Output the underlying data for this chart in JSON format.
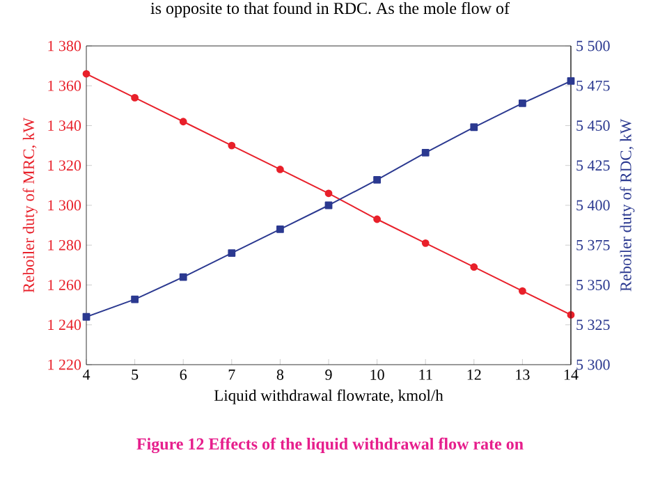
{
  "chart_data": {
    "type": "line",
    "xlabel": "Liquid withdrawal flowrate, kmol/h",
    "ylabel": "Reboiler duty of MRC, kW",
    "y2label": "Reboiler duty of RDC, kW",
    "annotations": [
      "is opposite to that found in RDC. As the mole flow of",
      "Figure 12    Effects of the liquid withdrawal flow rate on"
    ],
    "x": [
      4,
      5,
      6,
      7,
      8,
      9,
      10,
      11,
      12,
      13,
      14
    ],
    "series": [
      {
        "color": "#e8202a",
        "marker": "circle",
        "values": [
          1366,
          1354,
          1342,
          1330,
          1318,
          1306,
          1293,
          1281,
          1269,
          1257,
          1245
        ]
      },
      {
        "color": "#2b3990",
        "marker": "square",
        "axis": "y2",
        "values": [
          5330,
          5341,
          5355,
          5370,
          5385,
          5400,
          5416,
          5433,
          5449,
          5464,
          5478
        ]
      }
    ],
    "xlim": [
      4,
      14
    ],
    "xticks": [
      4,
      5,
      6,
      7,
      8,
      9,
      10,
      11,
      12,
      13,
      14
    ],
    "ylim": [
      1220,
      1380
    ],
    "yticks": [
      {
        "value": 1220,
        "label": "1 220"
      },
      {
        "value": 1240,
        "label": "1 240"
      },
      {
        "value": 1260,
        "label": "1 260"
      },
      {
        "value": 1280,
        "label": "1 280"
      },
      {
        "value": 1300,
        "label": "1 300"
      },
      {
        "value": 1320,
        "label": "1 320"
      },
      {
        "value": 1340,
        "label": "1 340"
      },
      {
        "value": 1360,
        "label": "1 360"
      },
      {
        "value": 1380,
        "label": "1 380"
      }
    ],
    "y2lim": [
      5300,
      5500
    ],
    "y2ticks": [
      {
        "value": 5300,
        "label": "5 300"
      },
      {
        "value": 5325,
        "label": "5 325"
      },
      {
        "value": 5350,
        "label": "5 350"
      },
      {
        "value": 5375,
        "label": "5 375"
      },
      {
        "value": 5400,
        "label": "5 400"
      },
      {
        "value": 5425,
        "label": "5 425"
      },
      {
        "value": 5450,
        "label": "5 450"
      },
      {
        "value": 5475,
        "label": "5 475"
      },
      {
        "value": 5500,
        "label": "5 500"
      }
    ],
    "line_style": "solid"
  }
}
